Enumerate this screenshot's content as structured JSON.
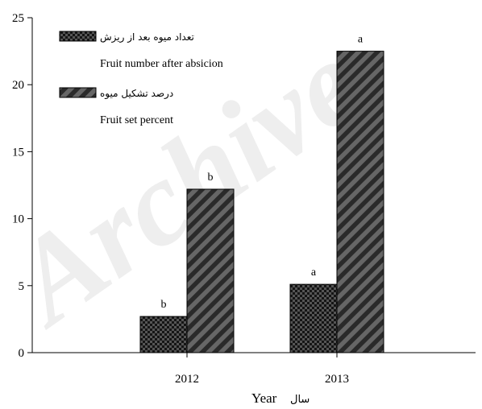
{
  "chart_data": {
    "type": "bar",
    "xlabel": "Year",
    "xlabel_fa": "سال",
    "categories": [
      "2012",
      "2013"
    ],
    "ylim": [
      0,
      25
    ],
    "yticks": [
      0,
      5,
      10,
      15,
      20,
      25
    ],
    "grid": false,
    "legend_position": "top-left",
    "series": [
      {
        "name": "Fruit number after absicion",
        "name_fa": "تعداد میوه بعد از ریزش",
        "values": [
          2.7,
          5.1
        ],
        "labels": [
          "b",
          "a"
        ],
        "pattern": "checker",
        "color": "#3a3a3a"
      },
      {
        "name": "Fruit set percent",
        "name_fa": "درصد تشکیل میوه",
        "values": [
          12.2,
          22.5
        ],
        "labels": [
          "b",
          "a"
        ],
        "pattern": "diagonal-hatch",
        "color": "#555555"
      }
    ]
  },
  "watermark": "Archive"
}
